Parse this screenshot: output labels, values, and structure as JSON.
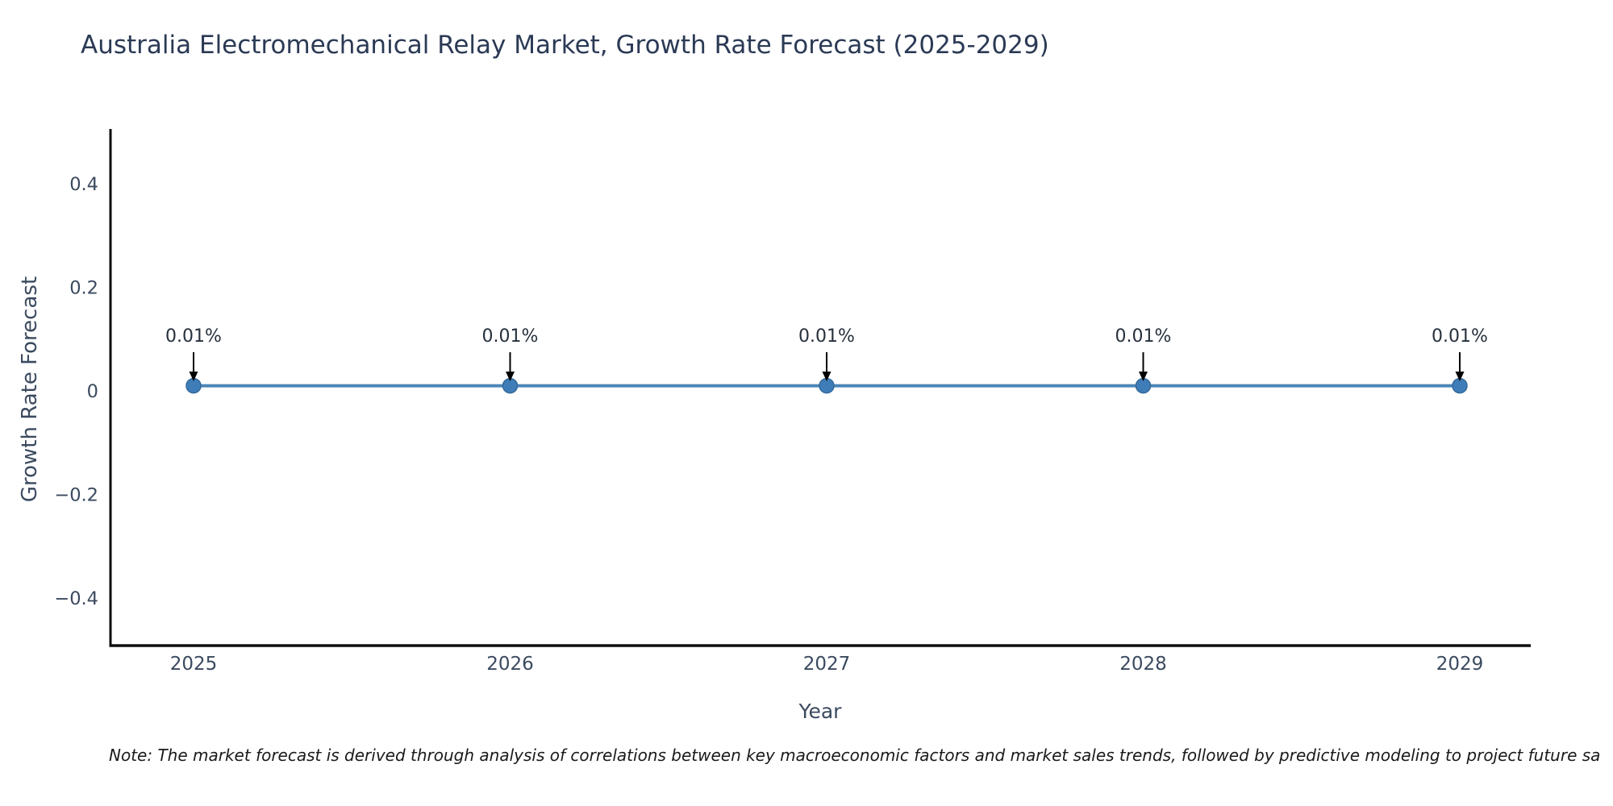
{
  "title": "Australia Electromechanical Relay Market, Growth Rate Forecast (2025-2029)",
  "note": "Note: The market forecast is derived through analysis of correlations between key macroeconomic factors and market sales trends, followed by predictive modeling to project future sa",
  "chart_data": {
    "type": "line",
    "title": "Australia Electromechanical Relay Market, Growth Rate Forecast (2025-2029)",
    "xlabel": "Year",
    "ylabel": "Growth Rate Forecast",
    "x": [
      2025,
      2026,
      2027,
      2028,
      2029
    ],
    "values": [
      0.01,
      0.01,
      0.01,
      0.01,
      0.01
    ],
    "point_labels": [
      "0.01%",
      "0.01%",
      "0.01%",
      "0.01%",
      "0.01%"
    ],
    "xtick_labels": [
      "2025",
      "2026",
      "2027",
      "2028",
      "2029"
    ],
    "yticks": [
      0.4,
      0.2,
      0,
      -0.2,
      -0.4
    ],
    "ytick_labels": [
      "0.4",
      "0.2",
      "0",
      "−0.2",
      "−0.4"
    ],
    "xlim": [
      2024.7,
      2029.2
    ],
    "ylim": [
      -0.5,
      0.5
    ],
    "grid": false,
    "legend": "none",
    "colors": {
      "line": "#4c86b8",
      "marker": "#3f7db9",
      "marker_edge": "#356a9b",
      "spine": "#0d0d0d",
      "tick": "#3b4a5f",
      "annotation": "#26303c",
      "arrow": "#000000",
      "title": "#2b3a55"
    }
  }
}
